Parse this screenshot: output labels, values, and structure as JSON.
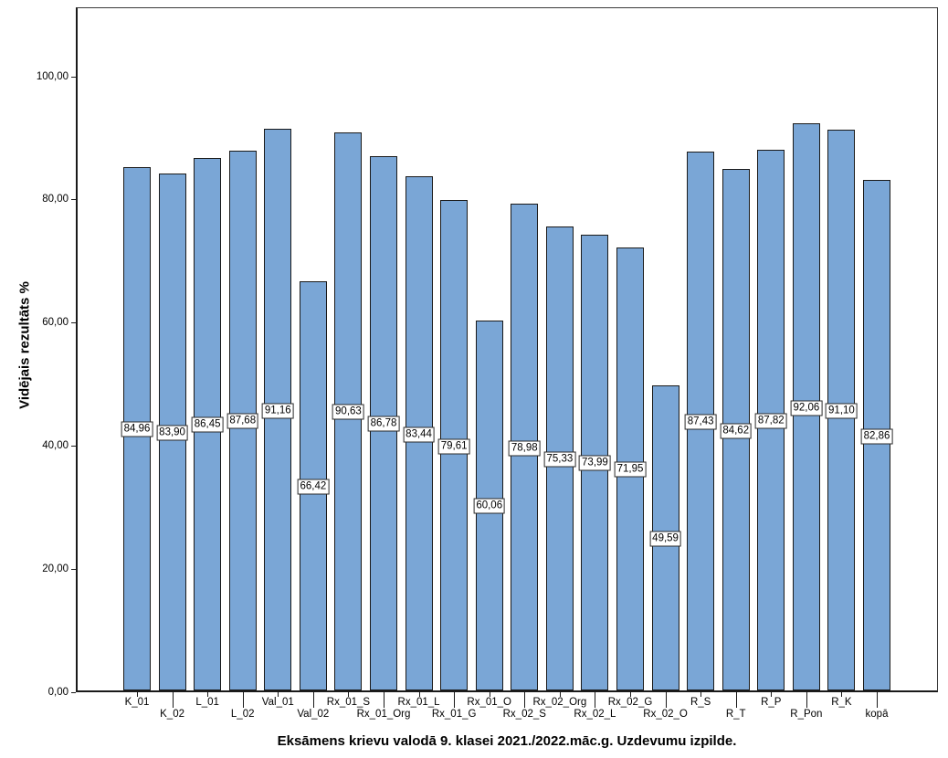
{
  "colors": {
    "bar_fill": "#7AA6D6",
    "bar_border": "#1A1A1A",
    "frame": "#3A3A3A",
    "axis": "#1A1A1A",
    "label_box_bg": "#FFFFFF",
    "label_box_border": "#2B2B2B",
    "text": "#000000"
  },
  "chart_data": {
    "type": "bar",
    "title": "",
    "xlabel": "Eksāmens krievu valodā 9. klasei 2021./2022.māc.g. Uzdevumu izpilde.",
    "ylabel": "Vidējais rezultāts %",
    "categories": [
      "K_01",
      "K_02",
      "L_01",
      "L_02",
      "Val_01",
      "Val_02",
      "Rx_01_S",
      "Rx_01_Org",
      "Rx_01_L",
      "Rx_01_G",
      "Rx_01_O",
      "Rx_02_S",
      "Rx_02_Org",
      "Rx_02_L",
      "Rx_02_G",
      "Rx_02_O",
      "R_S",
      "R_T",
      "R_P",
      "R_Pon",
      "R_K",
      "kopā"
    ],
    "values": [
      84.96,
      83.9,
      86.45,
      87.68,
      91.16,
      66.42,
      90.63,
      86.78,
      83.44,
      79.61,
      60.06,
      78.98,
      75.33,
      73.99,
      71.95,
      49.59,
      87.43,
      84.62,
      87.82,
      92.06,
      91.1,
      82.86
    ],
    "value_labels": [
      "84,96",
      "83,90",
      "86,45",
      "87,68",
      "91,16",
      "66,42",
      "90,63",
      "86,78",
      "83,44",
      "79,61",
      "60,06",
      "78,98",
      "75,33",
      "73,99",
      "71,95",
      "49,59",
      "87,43",
      "84,62",
      "87,82",
      "92,06",
      "91,10",
      "82,86"
    ],
    "y_tick_labels": [
      "0,00",
      "20,00",
      "40,00",
      "60,00",
      "80,00",
      "100,00"
    ],
    "y_tick_values": [
      0,
      20,
      40,
      60,
      80,
      100
    ],
    "ylim": [
      0,
      111.2
    ],
    "grid": false,
    "legend": "none",
    "value_label_position": "middle-of-bar",
    "x_label_layout": "staggered-two-rows"
  }
}
